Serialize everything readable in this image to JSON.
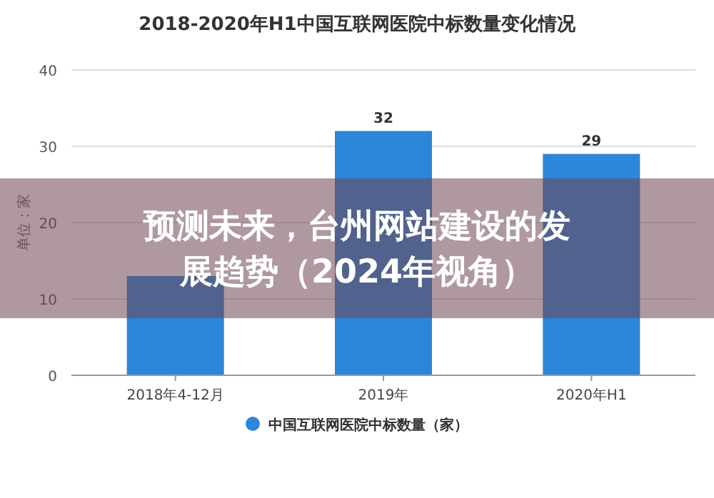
{
  "chart_data": {
    "type": "bar",
    "title": "2018-2020年H1中国互联网医院中标数量变化情况",
    "ylabel": "单位：家",
    "categories": [
      "2018年4-12月",
      "2019年",
      "2020年H1"
    ],
    "series": [
      {
        "name": "中国互联网医院中标数量（家）",
        "color": "#2e86d8",
        "values": [
          13,
          32,
          29
        ],
        "value_labels": [
          null,
          "32",
          "29"
        ]
      }
    ],
    "ylim": [
      0,
      40
    ],
    "yticks": [
      0,
      10,
      20,
      30,
      40
    ],
    "grid": "y",
    "legend": "bottom",
    "annotations": [
      "预测未来，台州网站建设的发展趋势（2024年视角）"
    ]
  }
}
